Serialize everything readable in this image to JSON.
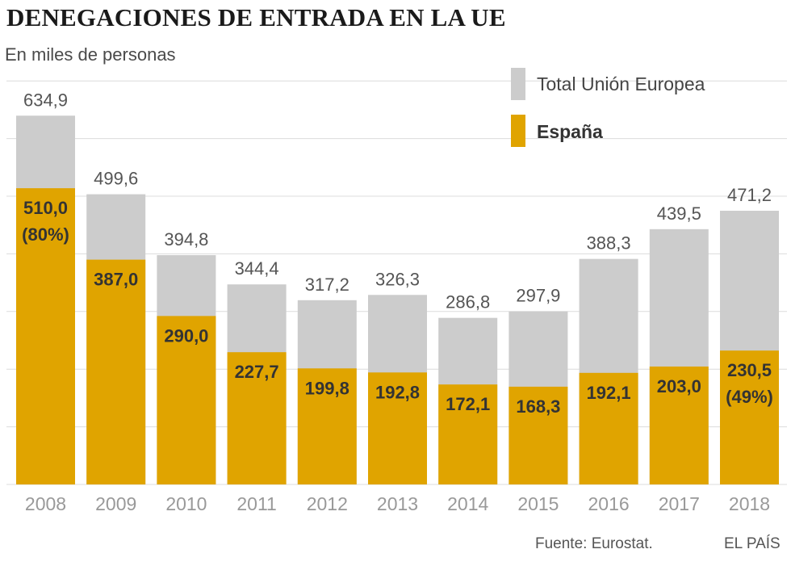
{
  "header": {
    "title": "DENEGACIONES DE ENTRADA EN LA UE",
    "subtitle": "En miles de personas"
  },
  "legend": {
    "total": "Total Unión Europea",
    "spain": "España"
  },
  "footer": {
    "source": "Fuente: Eurostat.",
    "brand": "EL PAÍS"
  },
  "colors": {
    "total": "#cccccc",
    "spain": "#e0a400",
    "grid": "#dcdcdc"
  },
  "chart_data": {
    "type": "bar",
    "title": "DENEGACIONES DE ENTRADA EN LA UE",
    "subtitle": "En miles de personas",
    "xlabel": "",
    "ylabel": "En miles de personas",
    "ylim": [
      0,
      700
    ],
    "grid": true,
    "legend_position": "top-right",
    "categories": [
      "2008",
      "2009",
      "2010",
      "2011",
      "2012",
      "2013",
      "2014",
      "2015",
      "2016",
      "2017",
      "2018"
    ],
    "series": [
      {
        "name": "Total Unión Europea",
        "values": [
          634.9,
          499.6,
          394.8,
          344.4,
          317.2,
          326.3,
          286.8,
          297.9,
          388.3,
          439.5,
          471.2
        ],
        "labels": [
          "634,9",
          "499,6",
          "394,8",
          "344,4",
          "317,2",
          "326,3",
          "286,8",
          "297,9",
          "388,3",
          "439,5",
          "471,2"
        ]
      },
      {
        "name": "España",
        "values": [
          510.0,
          387.0,
          290.0,
          227.7,
          199.8,
          192.8,
          172.1,
          168.3,
          192.1,
          203.0,
          230.5
        ],
        "labels": [
          "510,0",
          "387,0",
          "290,0",
          "227,7",
          "199,8",
          "192,8",
          "172,1",
          "168,3",
          "192,1",
          "203,0",
          "230,5"
        ]
      }
    ],
    "annotations": {
      "2008": "(80%)",
      "2018": "(49%)"
    }
  }
}
